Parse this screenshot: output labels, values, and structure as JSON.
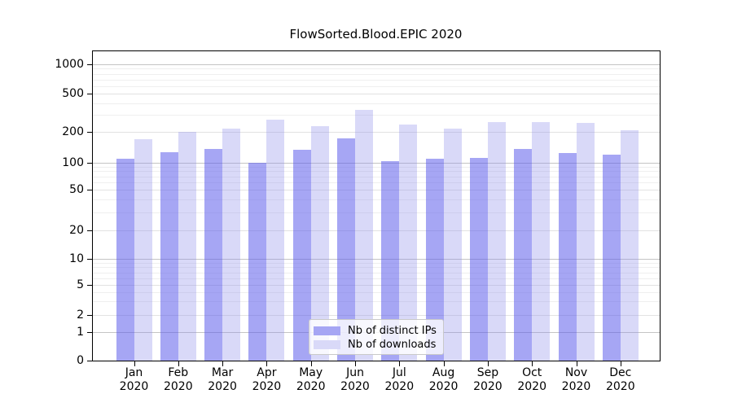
{
  "title": "FlowSorted.Blood.EPIC 2020",
  "chart_data": {
    "type": "bar",
    "categories": [
      "Jan 2020",
      "Feb 2020",
      "Mar 2020",
      "Apr 2020",
      "May 2020",
      "Jun 2020",
      "Jul 2020",
      "Aug 2020",
      "Sep 2020",
      "Oct 2020",
      "Nov 2020",
      "Dec 2020"
    ],
    "series": [
      {
        "name": "Nb of distinct IPs",
        "values": [
          108,
          125,
          135,
          100,
          133,
          172,
          103,
          108,
          110,
          136,
          124,
          120
        ],
        "color": "rgba(93,93,235,0.55)",
        "color_hex": "#a6a6f4"
      },
      {
        "name": "Nb of downloads",
        "values": [
          170,
          202,
          215,
          270,
          230,
          340,
          237,
          215,
          255,
          255,
          246,
          208
        ],
        "color": "rgba(146,146,235,0.35)",
        "color_hex": "#d9d9f8"
      }
    ],
    "title": "FlowSorted.Blood.EPIC 2020",
    "xlabel": "",
    "ylabel": "",
    "yscale": "symlog",
    "ylim": [
      0,
      1350
    ],
    "ytick_values": [
      0,
      1,
      2,
      5,
      10,
      20,
      50,
      100,
      200,
      500,
      1000
    ],
    "grid": true,
    "legend_position": "lower center"
  },
  "yaxis": {
    "tick_labels": [
      "0",
      "1",
      "2",
      "5",
      "10",
      "20",
      "50",
      "100",
      "200",
      "500",
      "1000"
    ]
  },
  "xaxis": {
    "months": [
      {
        "line1": "Jan",
        "line2": "2020"
      },
      {
        "line1": "Feb",
        "line2": "2020"
      },
      {
        "line1": "Mar",
        "line2": "2020"
      },
      {
        "line1": "Apr",
        "line2": "2020"
      },
      {
        "line1": "May",
        "line2": "2020"
      },
      {
        "line1": "Jun",
        "line2": "2020"
      },
      {
        "line1": "Jul",
        "line2": "2020"
      },
      {
        "line1": "Aug",
        "line2": "2020"
      },
      {
        "line1": "Sep",
        "line2": "2020"
      },
      {
        "line1": "Oct",
        "line2": "2020"
      },
      {
        "line1": "Nov",
        "line2": "2020"
      },
      {
        "line1": "Dec",
        "line2": "2020"
      }
    ]
  },
  "legend": {
    "items": [
      {
        "label": "Nb of distinct IPs"
      },
      {
        "label": "Nb of downloads"
      }
    ]
  }
}
